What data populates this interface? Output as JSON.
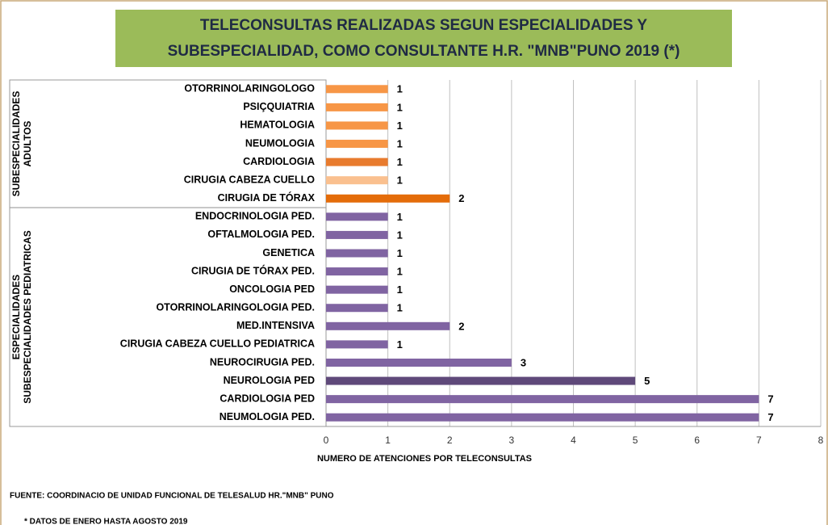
{
  "chart_data": {
    "type": "barh",
    "title": [
      "TELECONSULTAS REALIZADAS SEGUN  ESPECIALIDADES Y",
      "SUBESPECIALIDAD, COMO CONSULTANTE  H.R. \"MNB\"PUNO 2019 (*)"
    ],
    "categories": [
      "OTORRINOLARINGOLOGO",
      "PSIÇQUIATRIA",
      "HEMATOLOGIA",
      "NEUMOLOGIA",
      "CARDIOLOGIA",
      "CIRUGIA CABEZA CUELLO",
      "CIRUGIA DE TÓRAX",
      "ENDOCRINOLOGIA PED.",
      "OFTALMOLOGIA PED.",
      "GENETICA",
      "CIRUGIA DE TÓRAX PED.",
      "ONCOLOGIA PED",
      "OTORRINOLARINGOLOGIA PED.",
      "MED.INTENSIVA",
      "CIRUGIA CABEZA CUELLO PEDIATRICA",
      "NEUROCIRUGIA PED.",
      "NEUROLOGIA PED",
      "CARDIOLOGIA PED",
      "NEUMOLOGIA PED."
    ],
    "values": [
      1,
      1,
      1,
      1,
      1,
      1,
      2,
      1,
      1,
      1,
      1,
      1,
      1,
      2,
      1,
      3,
      5,
      7,
      7
    ],
    "colors": [
      "#f79646",
      "#f79646",
      "#f79646",
      "#f79646",
      "#e87b2e",
      "#fac08f",
      "#e46c0a",
      "#8064a2",
      "#8064a2",
      "#8064a2",
      "#8064a2",
      "#8064a2",
      "#8064a2",
      "#8064a2",
      "#8064a2",
      "#8064a2",
      "#5f497a",
      "#8064a2",
      "#8064a2"
    ],
    "groups": [
      {
        "lines": [
          "SUBESPECIALIDADES",
          "ADULTOS"
        ],
        "first": 0,
        "last": 6
      },
      {
        "lines": [
          "ESPECIALIDADES",
          "SUBESPECIALIDADES PEDIATRICAS"
        ],
        "first": 7,
        "last": 18
      }
    ],
    "xlabel": "NUMERO DE ATENCIONES POR TELECONSULTAS",
    "xlim": [
      0,
      8
    ],
    "xticks": [
      0,
      1,
      2,
      3,
      4,
      5,
      6,
      7,
      8
    ],
    "grid": true,
    "notes": [
      "FUENTE: COORDINACIO DE UNIDAD FUNCIONAL DE TELESALUD  HR.\"MNB\" PUNO",
      "*  DATOS DE ENERO HASTA AGOSTO 2019"
    ]
  }
}
